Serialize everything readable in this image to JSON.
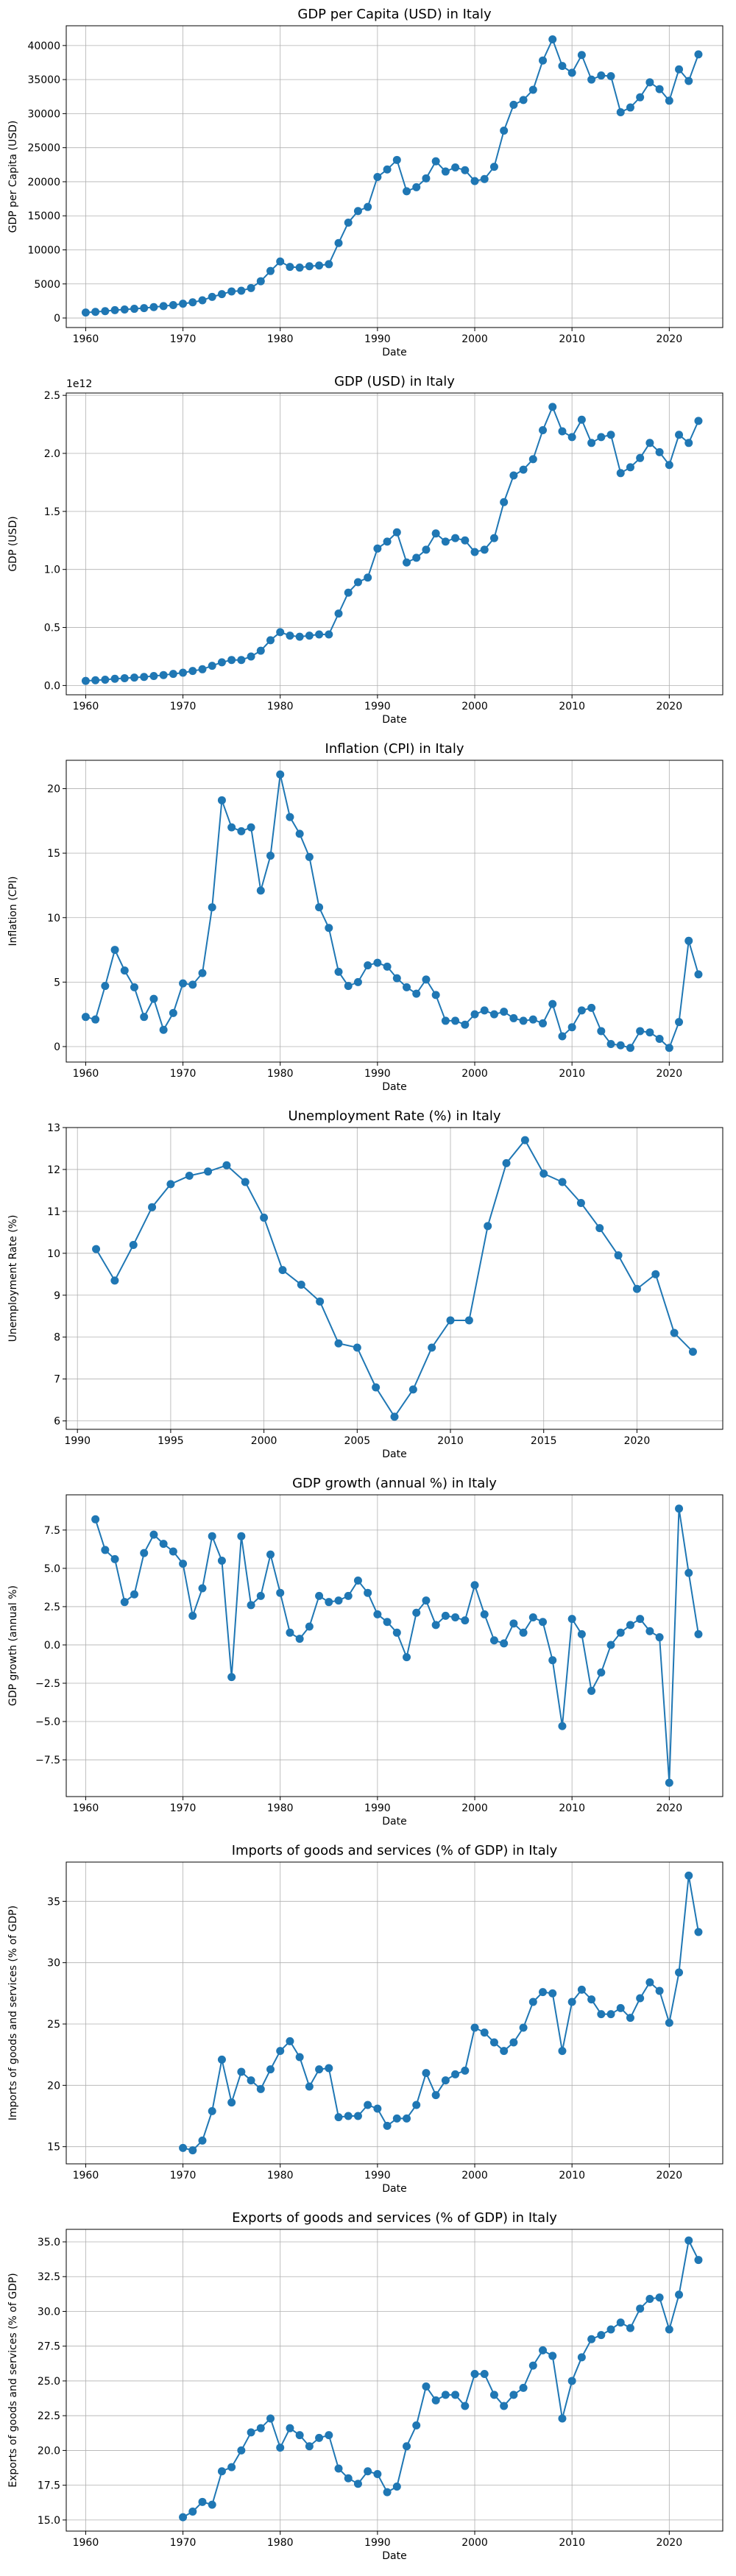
{
  "chart_data": [
    {
      "type": "line",
      "title": "GDP per Capita (USD) in Italy",
      "xlabel": "Date",
      "ylabel": "GDP per Capita (USD)",
      "x": [
        1960,
        1961,
        1962,
        1963,
        1964,
        1965,
        1966,
        1967,
        1968,
        1969,
        1970,
        1971,
        1972,
        1973,
        1974,
        1975,
        1976,
        1977,
        1978,
        1979,
        1980,
        1981,
        1982,
        1983,
        1984,
        1985,
        1986,
        1987,
        1988,
        1989,
        1990,
        1991,
        1992,
        1993,
        1994,
        1995,
        1996,
        1997,
        1998,
        1999,
        2000,
        2001,
        2002,
        2003,
        2004,
        2005,
        2006,
        2007,
        2008,
        2009,
        2010,
        2011,
        2012,
        2013,
        2014,
        2015,
        2016,
        2017,
        2018,
        2019,
        2020,
        2021,
        2022,
        2023
      ],
      "series": [
        {
          "values": [
            800,
            900,
            1000,
            1150,
            1250,
            1350,
            1450,
            1600,
            1750,
            1900,
            2100,
            2300,
            2600,
            3100,
            3500,
            3900,
            4000,
            4400,
            5400,
            6900,
            8300,
            7500,
            7400,
            7600,
            7700,
            7900,
            11000,
            14000,
            15700,
            16300,
            20700,
            21800,
            23200,
            18600,
            19200,
            20500,
            23000,
            21500,
            22100,
            21700,
            20100,
            20400,
            22200,
            27500,
            31300,
            32000,
            33500,
            37800,
            40900,
            37000,
            36000,
            38600,
            35000,
            35600,
            35500,
            30200,
            30900,
            32400,
            34600,
            33600,
            31900,
            36500,
            34800,
            38700
          ]
        }
      ],
      "ylim": [
        -1400,
        42900
      ],
      "yticks": [
        0,
        5000,
        10000,
        15000,
        20000,
        25000,
        30000,
        35000,
        40000
      ]
    },
    {
      "type": "line",
      "title": "GDP (USD) in Italy",
      "xlabel": "Date",
      "ylabel": "GDP (USD)",
      "offset_label": "1e12",
      "x": [
        1960,
        1961,
        1962,
        1963,
        1964,
        1965,
        1966,
        1967,
        1968,
        1969,
        1970,
        1971,
        1972,
        1973,
        1974,
        1975,
        1976,
        1977,
        1978,
        1979,
        1980,
        1981,
        1982,
        1983,
        1984,
        1985,
        1986,
        1987,
        1988,
        1989,
        1990,
        1991,
        1992,
        1993,
        1994,
        1995,
        1996,
        1997,
        1998,
        1999,
        2000,
        2001,
        2002,
        2003,
        2004,
        2005,
        2006,
        2007,
        2008,
        2009,
        2010,
        2011,
        2012,
        2013,
        2014,
        2015,
        2016,
        2017,
        2018,
        2019,
        2020,
        2021,
        2022,
        2023
      ],
      "series": [
        {
          "values": [
            0.04,
            0.045,
            0.05,
            0.058,
            0.063,
            0.068,
            0.074,
            0.082,
            0.09,
            0.1,
            0.11,
            0.125,
            0.14,
            0.17,
            0.2,
            0.22,
            0.22,
            0.25,
            0.3,
            0.39,
            0.46,
            0.43,
            0.42,
            0.43,
            0.44,
            0.44,
            0.62,
            0.8,
            0.89,
            0.93,
            1.18,
            1.24,
            1.32,
            1.06,
            1.1,
            1.17,
            1.31,
            1.24,
            1.27,
            1.25,
            1.15,
            1.17,
            1.27,
            1.58,
            1.81,
            1.86,
            1.95,
            2.2,
            2.4,
            2.19,
            2.14,
            2.29,
            2.09,
            2.14,
            2.16,
            1.83,
            1.88,
            1.96,
            2.09,
            2.01,
            1.9,
            2.16,
            2.09,
            2.28
          ]
        }
      ],
      "ylim": [
        -0.08,
        2.52
      ],
      "yticks": [
        0.0,
        0.5,
        1.0,
        1.5,
        2.0,
        2.5
      ],
      "ytick_labels": [
        "0.0",
        "0.5",
        "1.0",
        "1.5",
        "2.0",
        "2.5"
      ]
    },
    {
      "type": "line",
      "title": "Inflation (CPI) in Italy",
      "xlabel": "Date",
      "ylabel": "Inflation (CPI)",
      "x": [
        1960,
        1961,
        1962,
        1963,
        1964,
        1965,
        1966,
        1967,
        1968,
        1969,
        1970,
        1971,
        1972,
        1973,
        1974,
        1975,
        1976,
        1977,
        1978,
        1979,
        1980,
        1981,
        1982,
        1983,
        1984,
        1985,
        1986,
        1987,
        1988,
        1989,
        1990,
        1991,
        1992,
        1993,
        1994,
        1995,
        1996,
        1997,
        1998,
        1999,
        2000,
        2001,
        2002,
        2003,
        2004,
        2005,
        2006,
        2007,
        2008,
        2009,
        2010,
        2011,
        2012,
        2013,
        2014,
        2015,
        2016,
        2017,
        2018,
        2019,
        2020,
        2021,
        2022,
        2023
      ],
      "series": [
        {
          "values": [
            2.3,
            2.1,
            4.7,
            7.5,
            5.9,
            4.6,
            2.3,
            3.7,
            1.3,
            2.6,
            4.9,
            4.8,
            5.7,
            10.8,
            19.1,
            17.0,
            16.7,
            17.0,
            12.1,
            14.8,
            21.1,
            17.8,
            16.5,
            14.7,
            10.8,
            9.2,
            5.8,
            4.7,
            5.0,
            6.3,
            6.5,
            6.2,
            5.3,
            4.6,
            4.1,
            5.2,
            4.0,
            2.0,
            2.0,
            1.7,
            2.5,
            2.8,
            2.5,
            2.7,
            2.2,
            2.0,
            2.1,
            1.8,
            3.3,
            0.8,
            1.5,
            2.8,
            3.0,
            1.2,
            0.2,
            0.1,
            -0.1,
            1.2,
            1.1,
            0.6,
            -0.1,
            1.9,
            8.2,
            5.6
          ]
        }
      ],
      "ylim": [
        -1.2,
        22.2
      ],
      "yticks": [
        0,
        5,
        10,
        15,
        20
      ]
    },
    {
      "type": "line",
      "title": "Unemployment Rate (%) in Italy",
      "xlabel": "Date",
      "ylabel": "Unemployment Rate (%)",
      "x": [
        1991,
        1992,
        1993,
        1994,
        1995,
        1996,
        1997,
        1998,
        1999,
        2000,
        2001,
        2002,
        2003,
        2004,
        2005,
        2006,
        2007,
        2008,
        2009,
        2010,
        2011,
        2012,
        2013,
        2014,
        2015,
        2016,
        2017,
        2018,
        2019,
        2020,
        2021,
        2022,
        2023
      ],
      "series": [
        {
          "values": [
            10.1,
            9.35,
            10.2,
            11.1,
            11.65,
            11.85,
            11.95,
            12.1,
            11.7,
            10.85,
            9.6,
            9.25,
            8.85,
            7.85,
            7.75,
            6.8,
            6.1,
            6.75,
            7.75,
            8.4,
            8.4,
            10.65,
            12.15,
            12.7,
            11.9,
            11.7,
            11.2,
            10.6,
            9.95,
            9.15,
            9.5,
            8.1,
            7.65
          ]
        }
      ],
      "ylim": [
        5.8,
        13.0
      ],
      "yticks": [
        6,
        7,
        8,
        9,
        10,
        11,
        12,
        13
      ]
    },
    {
      "type": "line",
      "title": "GDP growth (annual %) in Italy",
      "xlabel": "Date",
      "ylabel": "GDP growth (annual %)",
      "x": [
        1961,
        1962,
        1963,
        1964,
        1965,
        1966,
        1967,
        1968,
        1969,
        1970,
        1971,
        1972,
        1973,
        1974,
        1975,
        1976,
        1977,
        1978,
        1979,
        1980,
        1981,
        1982,
        1983,
        1984,
        1985,
        1986,
        1987,
        1988,
        1989,
        1990,
        1991,
        1992,
        1993,
        1994,
        1995,
        1996,
        1997,
        1998,
        1999,
        2000,
        2001,
        2002,
        2003,
        2004,
        2005,
        2006,
        2007,
        2008,
        2009,
        2010,
        2011,
        2012,
        2013,
        2014,
        2015,
        2016,
        2017,
        2018,
        2019,
        2020,
        2021,
        2022,
        2023
      ],
      "series": [
        {
          "values": [
            8.2,
            6.2,
            5.6,
            2.8,
            3.3,
            6.0,
            7.2,
            6.6,
            6.1,
            5.3,
            1.9,
            3.7,
            7.1,
            5.5,
            -2.1,
            7.1,
            2.6,
            3.2,
            5.9,
            3.4,
            0.8,
            0.4,
            1.2,
            3.2,
            2.8,
            2.9,
            3.2,
            4.2,
            3.4,
            2.0,
            1.5,
            0.8,
            -0.8,
            2.1,
            2.9,
            1.3,
            1.9,
            1.8,
            1.6,
            3.9,
            2.0,
            0.3,
            0.1,
            1.4,
            0.8,
            1.8,
            1.5,
            -1.0,
            -5.3,
            1.7,
            0.7,
            -3.0,
            -1.8,
            0.0,
            0.8,
            1.3,
            1.7,
            0.9,
            0.5,
            -9.0,
            8.9,
            4.7,
            0.7
          ]
        }
      ],
      "ylim": [
        -9.9,
        9.8
      ],
      "yticks": [
        -7.5,
        -5.0,
        -2.5,
        0.0,
        2.5,
        5.0,
        7.5
      ],
      "ytick_labels": [
        "−7.5",
        "−5.0",
        "−2.5",
        "0.0",
        "2.5",
        "5.0",
        "7.5"
      ]
    },
    {
      "type": "line",
      "title": "Imports of goods and services (% of GDP) in Italy",
      "xlabel": "Date",
      "ylabel": "Imports of goods and services (% of GDP)",
      "x": [
        1970,
        1971,
        1972,
        1973,
        1974,
        1975,
        1976,
        1977,
        1978,
        1979,
        1980,
        1981,
        1982,
        1983,
        1984,
        1985,
        1986,
        1987,
        1988,
        1989,
        1990,
        1991,
        1992,
        1993,
        1994,
        1995,
        1996,
        1997,
        1998,
        1999,
        2000,
        2001,
        2002,
        2003,
        2004,
        2005,
        2006,
        2007,
        2008,
        2009,
        2010,
        2011,
        2012,
        2013,
        2014,
        2015,
        2016,
        2017,
        2018,
        2019,
        2020,
        2021,
        2022,
        2023
      ],
      "series": [
        {
          "values": [
            14.9,
            14.7,
            15.5,
            17.9,
            22.1,
            18.6,
            21.1,
            20.4,
            19.7,
            21.3,
            22.8,
            23.6,
            22.3,
            19.9,
            21.3,
            21.4,
            17.4,
            17.5,
            17.5,
            18.4,
            18.1,
            16.7,
            17.3,
            17.3,
            18.4,
            21.0,
            19.2,
            20.4,
            20.9,
            21.2,
            24.7,
            24.3,
            23.5,
            22.8,
            23.5,
            24.7,
            26.8,
            27.6,
            27.5,
            22.8,
            26.8,
            27.8,
            27.0,
            25.8,
            25.8,
            26.3,
            25.5,
            27.1,
            28.4,
            27.7,
            25.1,
            29.2,
            37.1,
            32.5
          ]
        }
      ],
      "ylim": [
        13.6,
        38.2
      ],
      "yticks": [
        15,
        20,
        25,
        30,
        35
      ]
    },
    {
      "type": "line",
      "title": "Exports of goods and services (% of GDP) in Italy",
      "xlabel": "Date",
      "ylabel": "Exports of goods and services (% of GDP)",
      "x": [
        1970,
        1971,
        1972,
        1973,
        1974,
        1975,
        1976,
        1977,
        1978,
        1979,
        1980,
        1981,
        1982,
        1983,
        1984,
        1985,
        1986,
        1987,
        1988,
        1989,
        1990,
        1991,
        1992,
        1993,
        1994,
        1995,
        1996,
        1997,
        1998,
        1999,
        2000,
        2001,
        2002,
        2003,
        2004,
        2005,
        2006,
        2007,
        2008,
        2009,
        2010,
        2011,
        2012,
        2013,
        2014,
        2015,
        2016,
        2017,
        2018,
        2019,
        2020,
        2021,
        2022,
        2023
      ],
      "series": [
        {
          "values": [
            15.2,
            15.6,
            16.3,
            16.1,
            18.5,
            18.8,
            20.0,
            21.3,
            21.6,
            22.3,
            20.2,
            21.6,
            21.1,
            20.3,
            20.9,
            21.1,
            18.7,
            18.0,
            17.6,
            18.5,
            18.3,
            17.0,
            17.4,
            20.3,
            21.8,
            24.6,
            23.6,
            24.0,
            24.0,
            23.2,
            25.5,
            25.5,
            24.0,
            23.2,
            24.0,
            24.5,
            26.1,
            27.2,
            26.8,
            22.3,
            25.0,
            26.7,
            28.0,
            28.3,
            28.7,
            29.2,
            28.8,
            30.2,
            30.9,
            31.0,
            28.7,
            31.2,
            35.1,
            33.7
          ]
        }
      ],
      "ylim": [
        14.2,
        35.9
      ],
      "yticks": [
        15.0,
        17.5,
        20.0,
        22.5,
        25.0,
        27.5,
        30.0,
        32.5,
        35.0
      ],
      "ytick_labels": [
        "15.0",
        "17.5",
        "20.0",
        "22.5",
        "25.0",
        "27.5",
        "30.0",
        "32.5",
        "35.0"
      ]
    }
  ],
  "colors": {
    "line": "#1f77b4",
    "grid": "#b0b0b0",
    "axis": "#000000"
  }
}
